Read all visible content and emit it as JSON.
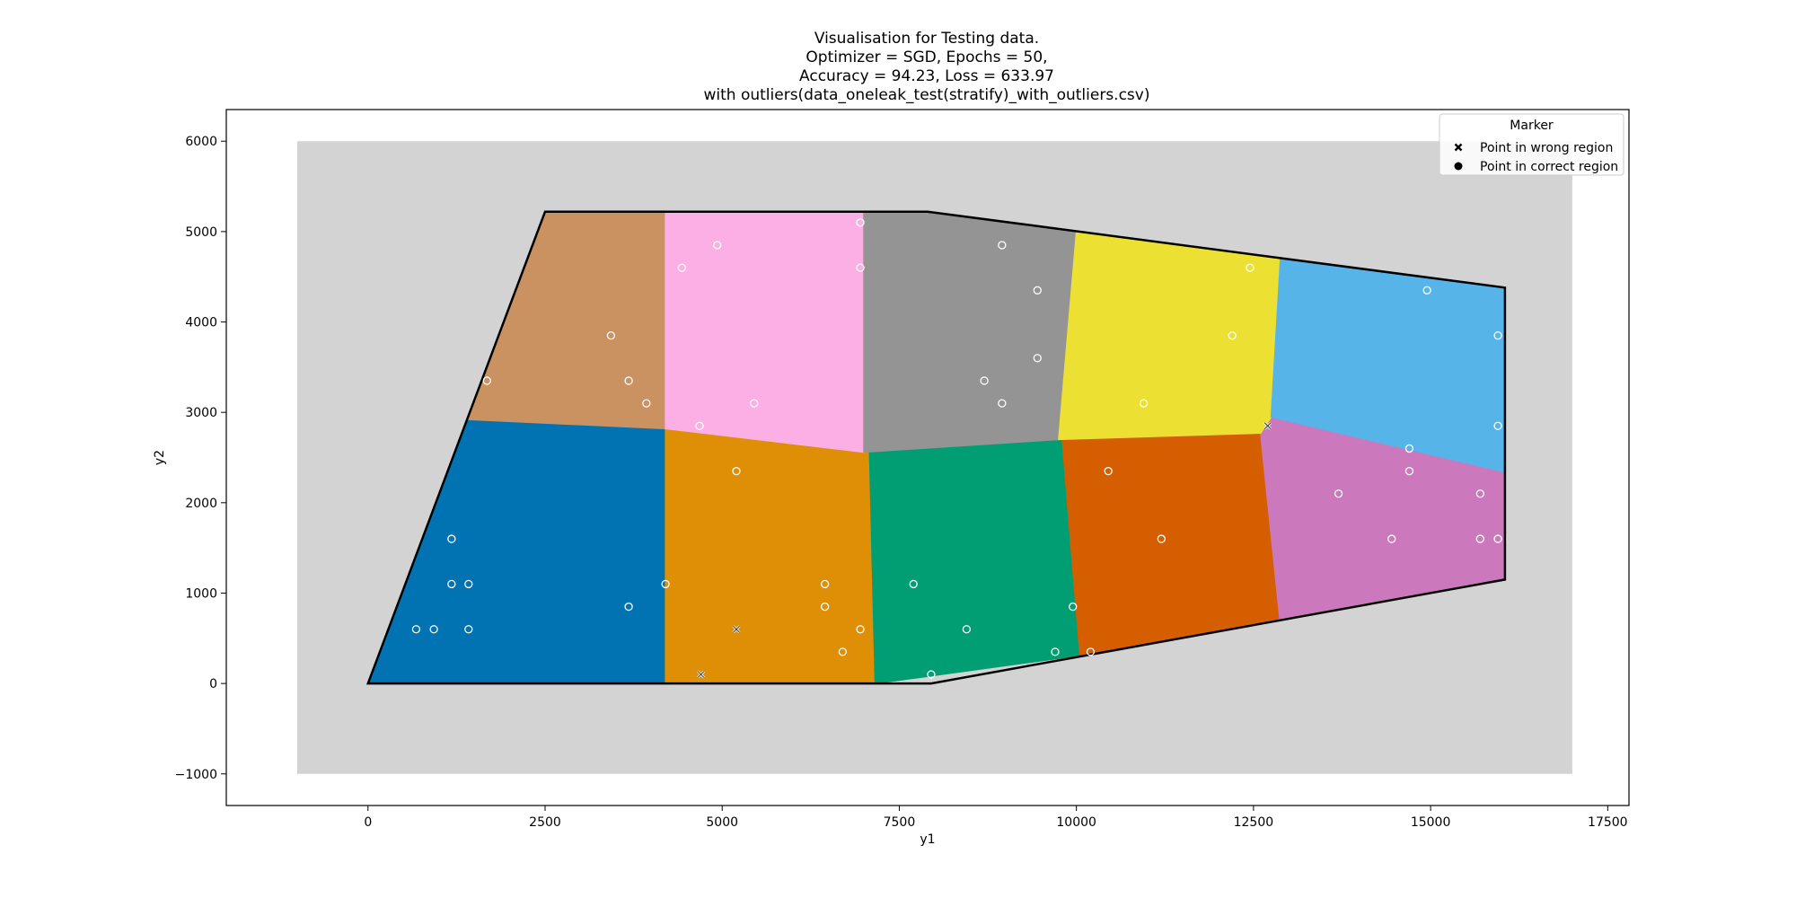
{
  "chart_data": {
    "type": "scatter",
    "title_lines": [
      "Visualisation for Testing data.",
      "Optimizer = SGD, Epochs = 50,",
      "Accuracy = 94.23, Loss = 633.97",
      "with outliers(data_oneleak_test(stratify)_with_outliers.csv)"
    ],
    "xlabel": "y1",
    "ylabel": "y2",
    "xlim": [
      -2000,
      17800
    ],
    "ylim": [
      -1350,
      6350
    ],
    "xticks": [
      0,
      2500,
      5000,
      7500,
      10000,
      12500,
      15000,
      17500
    ],
    "yticks": [
      -1000,
      0,
      1000,
      2000,
      3000,
      4000,
      5000,
      6000
    ],
    "grid": false,
    "background_rect": {
      "x": [
        -1000,
        17000
      ],
      "y": [
        -1000,
        6000
      ],
      "color": "#d3d3d3"
    },
    "boundary": [
      [
        0,
        0
      ],
      [
        2500,
        5220
      ],
      [
        7900,
        5220
      ],
      [
        16050,
        4380
      ],
      [
        16050,
        1150
      ],
      [
        7950,
        0
      ]
    ],
    "regions": [
      {
        "color": "#0173b2",
        "polygon": [
          [
            0,
            0
          ],
          [
            1420,
            2920
          ],
          [
            4200,
            2820
          ],
          [
            4200,
            0
          ]
        ]
      },
      {
        "color": "#de8f05",
        "polygon": [
          [
            4200,
            0
          ],
          [
            4200,
            2820
          ],
          [
            7080,
            2560
          ],
          [
            7160,
            0
          ]
        ]
      },
      {
        "color": "#029e73",
        "polygon": [
          [
            7160,
            0
          ],
          [
            7080,
            2560
          ],
          [
            9800,
            2700
          ],
          [
            10050,
            310
          ]
        ]
      },
      {
        "color": "#d55e00",
        "polygon": [
          [
            10050,
            310
          ],
          [
            9800,
            2700
          ],
          [
            12600,
            2770
          ],
          [
            12870,
            720
          ]
        ]
      },
      {
        "color": "#cc78bc",
        "polygon": [
          [
            12870,
            720
          ],
          [
            12600,
            2770
          ],
          [
            12750,
            2950
          ],
          [
            16050,
            2340
          ],
          [
            16050,
            1150
          ]
        ]
      },
      {
        "color": "#ca9161",
        "polygon": [
          [
            1420,
            2920
          ],
          [
            2500,
            5220
          ],
          [
            4200,
            5220
          ],
          [
            4200,
            2820
          ]
        ]
      },
      {
        "color": "#fbafe4",
        "polygon": [
          [
            4200,
            2820
          ],
          [
            4200,
            5220
          ],
          [
            7000,
            5220
          ],
          [
            7000,
            2560
          ]
        ]
      },
      {
        "color": "#949494",
        "polygon": [
          [
            7000,
            2560
          ],
          [
            7000,
            5220
          ],
          [
            7900,
            5220
          ],
          [
            10000,
            5000
          ],
          [
            9750,
            2700
          ]
        ]
      },
      {
        "color": "#ece133",
        "polygon": [
          [
            9750,
            2700
          ],
          [
            10000,
            5000
          ],
          [
            12880,
            4700
          ],
          [
            12750,
            2950
          ],
          [
            12600,
            2770
          ]
        ]
      },
      {
        "color": "#56b4e9",
        "polygon": [
          [
            12750,
            2950
          ],
          [
            12880,
            4700
          ],
          [
            16050,
            4380
          ],
          [
            16050,
            2340
          ]
        ]
      }
    ],
    "correct_points": [
      [
        680,
        600
      ],
      [
        930,
        600
      ],
      [
        1420,
        600
      ],
      [
        1180,
        1100
      ],
      [
        1420,
        1100
      ],
      [
        1180,
        1600
      ],
      [
        3680,
        850
      ],
      [
        4200,
        1100
      ],
      [
        5200,
        2350
      ],
      [
        6450,
        1100
      ],
      [
        6450,
        850
      ],
      [
        6950,
        600
      ],
      [
        6700,
        350
      ],
      [
        7700,
        1100
      ],
      [
        8450,
        600
      ],
      [
        7950,
        100
      ],
      [
        9700,
        350
      ],
      [
        9950,
        850
      ],
      [
        10200,
        350
      ],
      [
        10450,
        2350
      ],
      [
        11200,
        1600
      ],
      [
        13700,
        2100
      ],
      [
        14450,
        1600
      ],
      [
        14700,
        2350
      ],
      [
        14700,
        2600
      ],
      [
        15700,
        2100
      ],
      [
        15700,
        1600
      ],
      [
        15950,
        1600
      ],
      [
        15950,
        2850
      ],
      [
        1680,
        3350
      ],
      [
        3430,
        3850
      ],
      [
        3680,
        3350
      ],
      [
        3930,
        3100
      ],
      [
        4680,
        2850
      ],
      [
        4430,
        4600
      ],
      [
        4930,
        4850
      ],
      [
        5450,
        3100
      ],
      [
        6950,
        5100
      ],
      [
        6950,
        4600
      ],
      [
        8700,
        3350
      ],
      [
        8950,
        3100
      ],
      [
        8950,
        4850
      ],
      [
        9450,
        4350
      ],
      [
        9450,
        3600
      ],
      [
        10950,
        3100
      ],
      [
        12200,
        3850
      ],
      [
        12450,
        4600
      ],
      [
        14950,
        4350
      ],
      [
        15950,
        3850
      ]
    ],
    "wrong_points": [
      [
        5200,
        600
      ],
      [
        4700,
        100
      ],
      [
        12700,
        2850
      ]
    ],
    "legend": {
      "title": "Marker",
      "placement": "top-right",
      "entries": [
        {
          "label": "Point in wrong region",
          "marker": "x-filled"
        },
        {
          "label": "Point in correct region",
          "marker": "circle"
        }
      ]
    }
  }
}
